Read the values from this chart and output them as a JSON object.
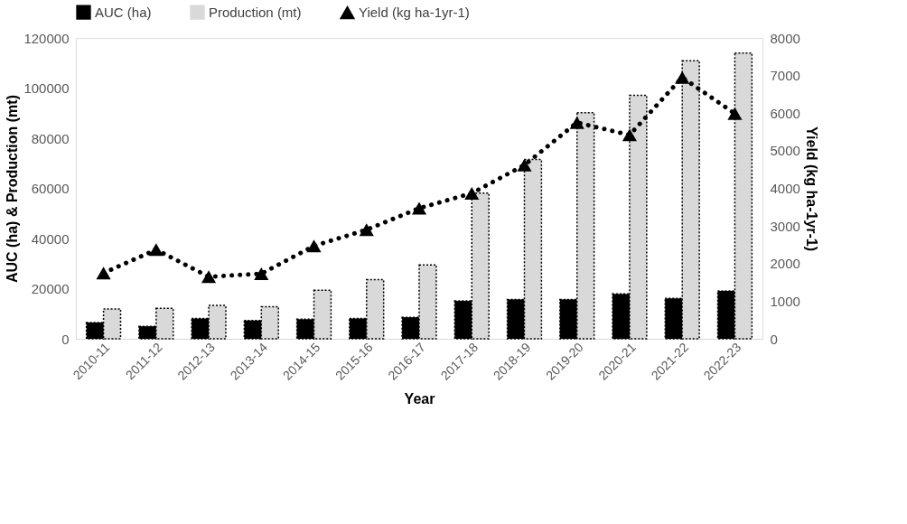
{
  "chart_data": {
    "type": "bar",
    "xlabel": "Year",
    "ylabel": "AUC (ha) & Production (mt)",
    "y2label": "Yield (kg ha-1yr-1)",
    "categories": [
      "2010-11",
      "2011-12",
      "2012-13",
      "2013-14",
      "2014-15",
      "2015-16",
      "2016-17",
      "2017-18",
      "2018-19",
      "2019-20",
      "2020-21",
      "2021-22",
      "2022-23"
    ],
    "series": [
      {
        "name": "AUC (ha)",
        "color": "#000000",
        "values": [
          6500,
          5000,
          8100,
          7300,
          7800,
          8100,
          8600,
          15100,
          15700,
          15700,
          17900,
          16100,
          19100
        ]
      },
      {
        "name": "Production (mt)",
        "color": "#d9d9d9",
        "values": [
          11900,
          12200,
          13300,
          12800,
          19400,
          23600,
          29500,
          58100,
          71500,
          90200,
          97100,
          110900,
          114000
        ]
      },
      {
        "name": "Yield (kg ha-1yr-1)",
        "type": "line",
        "axis": "y2",
        "color": "#000000",
        "marker": "triangle",
        "line_style": "dotted",
        "values": [
          1750,
          2370,
          1650,
          1730,
          2470,
          2900,
          3470,
          3870,
          4620,
          5750,
          5420,
          6950,
          5990
        ]
      }
    ],
    "ylim": [
      0,
      120000
    ],
    "yticks": [
      0,
      20000,
      40000,
      60000,
      80000,
      100000,
      120000
    ],
    "y2lim": [
      0,
      8000
    ],
    "y2ticks": [
      0,
      1000,
      2000,
      3000,
      4000,
      5000,
      6000,
      7000,
      8000
    ],
    "grid": false,
    "legend": "top"
  }
}
